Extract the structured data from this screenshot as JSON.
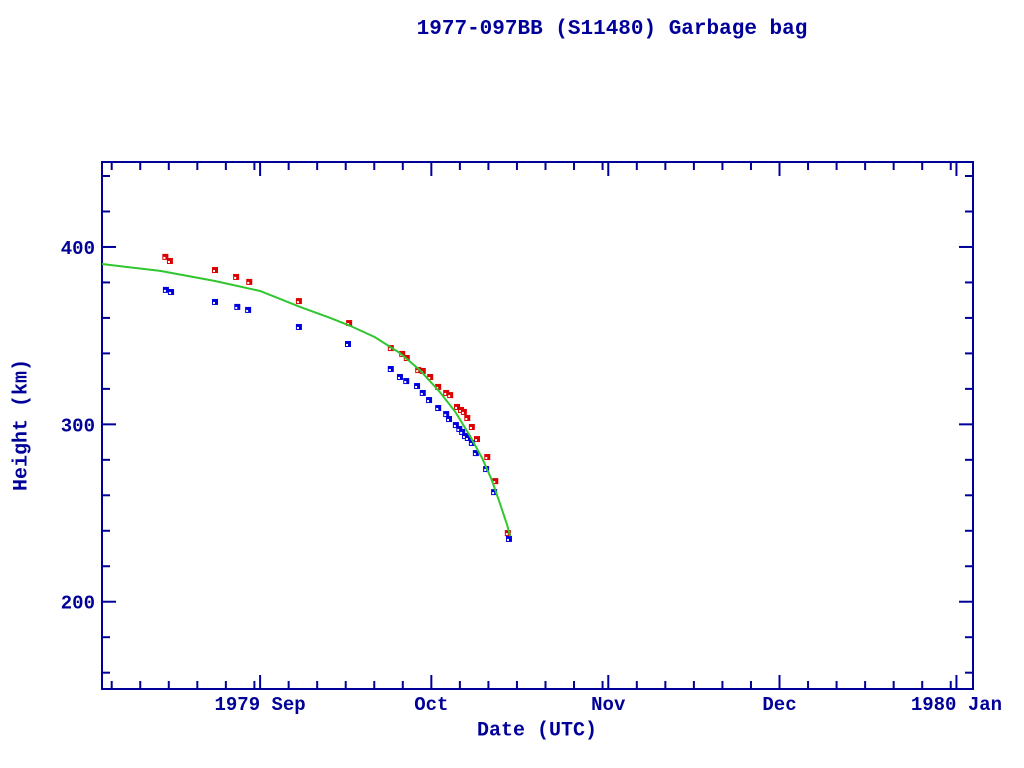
{
  "page": {
    "background": "#ffffff"
  },
  "chart_data": {
    "type": "scatter",
    "title": "1977-097BB (S11480) Garbage bag",
    "xlabel": "Date (UTC)",
    "ylabel": "Height (km)",
    "grid": false,
    "legend": null,
    "colors": {
      "axis": "#000099",
      "red_series": "#dd0000",
      "blue_series": "#0000dd",
      "fit_line": "#2fc62f"
    },
    "x_axis": {
      "unit": "days since 1979-09-01",
      "min": -27.7,
      "max": 124.9,
      "major_ticks": [
        {
          "d": 0,
          "label": "1979 Sep"
        },
        {
          "d": 30,
          "label": "Oct"
        },
        {
          "d": 61,
          "label": "Nov"
        },
        {
          "d": 91,
          "label": "Dec"
        },
        {
          "d": 122,
          "label": "1980 Jan"
        }
      ],
      "minor_tick_days": [
        -26,
        -21,
        -16,
        -11,
        -6,
        -1,
        5,
        10,
        15,
        20,
        25,
        35,
        40,
        45,
        50,
        55,
        60,
        66,
        71,
        76,
        81,
        86,
        96,
        101,
        106,
        111,
        116,
        121
      ]
    },
    "y_axis": {
      "min": 150.8,
      "max": 447.9,
      "major_ticks": [
        {
          "v": 200,
          "label": "200"
        },
        {
          "v": 300,
          "label": "300"
        },
        {
          "v": 400,
          "label": "400"
        }
      ],
      "minor_ticks": [
        160,
        180,
        220,
        240,
        260,
        280,
        320,
        340,
        360,
        380,
        420,
        440
      ]
    },
    "series": [
      {
        "name": "red-points",
        "type": "scatter",
        "marker": "square",
        "color_key": "red_series",
        "points": [
          [
            -16.6,
            394.4
          ],
          [
            -15.8,
            392.1
          ],
          [
            -7.9,
            387.0
          ],
          [
            -4.2,
            383.1
          ],
          [
            -1.9,
            380.3
          ],
          [
            6.8,
            369.5
          ],
          [
            15.6,
            357.1
          ],
          [
            22.9,
            343.0
          ],
          [
            24.9,
            339.7
          ],
          [
            25.7,
            337.4
          ],
          [
            27.7,
            330.6
          ],
          [
            28.5,
            330.1
          ],
          [
            29.8,
            326.7
          ],
          [
            31.2,
            321.1
          ],
          [
            32.6,
            317.7
          ],
          [
            33.3,
            316.5
          ],
          [
            34.5,
            309.8
          ],
          [
            35.2,
            308.1
          ],
          [
            35.7,
            307.0
          ],
          [
            36.3,
            303.6
          ],
          [
            37.1,
            298.5
          ],
          [
            38.0,
            291.7
          ],
          [
            39.8,
            281.6
          ],
          [
            41.2,
            268.0
          ],
          [
            43.4,
            238.7
          ]
        ]
      },
      {
        "name": "blue-points",
        "type": "scatter",
        "marker": "square",
        "color_key": "blue_series",
        "points": [
          [
            -16.5,
            375.8
          ],
          [
            -15.6,
            374.6
          ],
          [
            -7.9,
            369.0
          ],
          [
            -4.0,
            366.2
          ],
          [
            -2.1,
            364.5
          ],
          [
            6.8,
            354.9
          ],
          [
            15.4,
            345.3
          ],
          [
            22.9,
            331.2
          ],
          [
            24.5,
            326.7
          ],
          [
            25.6,
            324.4
          ],
          [
            27.5,
            321.6
          ],
          [
            28.5,
            317.7
          ],
          [
            29.6,
            313.7
          ],
          [
            31.2,
            309.2
          ],
          [
            32.6,
            305.8
          ],
          [
            33.1,
            303.0
          ],
          [
            34.3,
            299.6
          ],
          [
            34.9,
            297.4
          ],
          [
            35.4,
            295.7
          ],
          [
            35.9,
            293.4
          ],
          [
            36.4,
            292.3
          ],
          [
            37.1,
            289.5
          ],
          [
            37.8,
            283.8
          ],
          [
            39.6,
            274.8
          ],
          [
            41.0,
            261.8
          ],
          [
            43.6,
            235.4
          ]
        ]
      },
      {
        "name": "fit-line",
        "type": "line",
        "color_key": "fit_line",
        "points": [
          [
            -27.7,
            390.4
          ],
          [
            -17.5,
            386.5
          ],
          [
            -7.9,
            380.8
          ],
          [
            0,
            375.2
          ],
          [
            7.0,
            366.2
          ],
          [
            12.3,
            360.0
          ],
          [
            15.8,
            355.5
          ],
          [
            20.1,
            349.2
          ],
          [
            24.5,
            340.2
          ],
          [
            28.0,
            330.6
          ],
          [
            31.5,
            318.2
          ],
          [
            34.2,
            307.0
          ],
          [
            36.8,
            293.4
          ],
          [
            38.9,
            281.0
          ],
          [
            40.6,
            268.6
          ],
          [
            42.0,
            255.6
          ],
          [
            43.3,
            243.2
          ],
          [
            43.8,
            237.0
          ]
        ]
      }
    ]
  }
}
